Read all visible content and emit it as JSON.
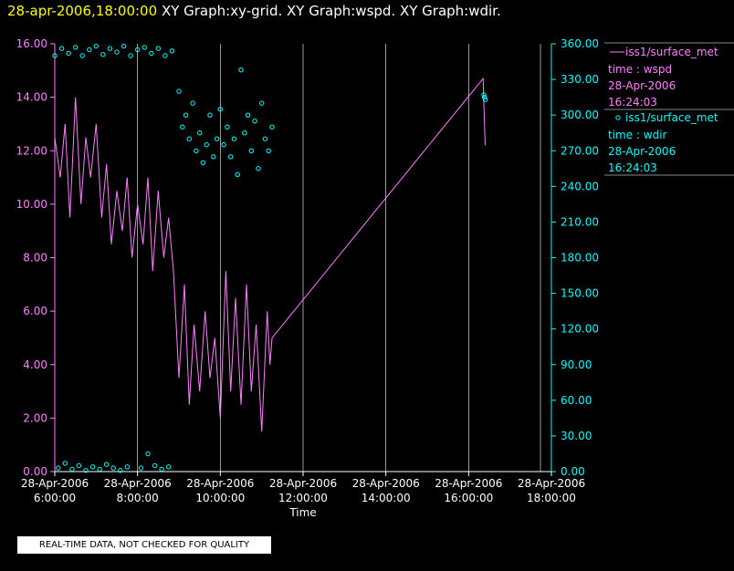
{
  "header": {
    "timestamp": "28-apr-2006,18:00:00",
    "graphs": "XY Graph:xy-grid.  XY Graph:wspd.  XY Graph:wdir."
  },
  "footer_note": "REAL-TIME DATA, NOT CHECKED FOR QUALITY",
  "colors": {
    "wspd": "#ff80ff",
    "wdir": "#00ffff",
    "grid": "#ffffff",
    "timestamp": "#ffff00",
    "axis_text": "#ffffff"
  },
  "chart_data": {
    "type": "line",
    "xlabel": "Time",
    "x_ticks": [
      {
        "date": "28-Apr-2006",
        "time": "6:00:00"
      },
      {
        "date": "28-Apr-2006",
        "time": "8:00:00"
      },
      {
        "date": "28-Apr-2006",
        "time": "10:00:00"
      },
      {
        "date": "28-Apr-2006",
        "time": "12:00:00"
      },
      {
        "date": "28-Apr-2006",
        "time": "14:00:00"
      },
      {
        "date": "28-Apr-2006",
        "time": "16:00:00"
      },
      {
        "date": "28-Apr-2006",
        "time": "18:00:00"
      }
    ],
    "xlim": [
      "28-Apr-2006 06:00:00",
      "28-Apr-2006 18:00:00"
    ],
    "left_axis": {
      "ylim": [
        0,
        16
      ],
      "ticks": [
        "0.00",
        "2.00",
        "4.00",
        "6.00",
        "8.00",
        "10.00",
        "12.00",
        "14.00",
        "16.00"
      ]
    },
    "right_axis": {
      "ylim": [
        0,
        360
      ],
      "ticks": [
        "0.00",
        "30.00",
        "60.00",
        "90.00",
        "120.00",
        "150.00",
        "180.00",
        "210.00",
        "240.00",
        "270.00",
        "300.00",
        "330.00",
        "360.00"
      ]
    },
    "grid": "vertical",
    "legend_position": "right",
    "series": [
      {
        "name": "iss1/surface_met",
        "legend_lines": [
          "iss1/surface_met",
          "time : wspd",
          "28-Apr-2006",
          "16:24:03"
        ],
        "axis": "left",
        "style": "line",
        "points": [
          [
            "06:00",
            12.5
          ],
          [
            "06:08",
            11.0
          ],
          [
            "06:15",
            13.0
          ],
          [
            "06:22",
            9.5
          ],
          [
            "06:30",
            14.0
          ],
          [
            "06:38",
            10.0
          ],
          [
            "06:45",
            12.5
          ],
          [
            "06:52",
            11.0
          ],
          [
            "07:00",
            13.0
          ],
          [
            "07:08",
            9.5
          ],
          [
            "07:15",
            11.5
          ],
          [
            "07:22",
            8.5
          ],
          [
            "07:30",
            10.5
          ],
          [
            "07:38",
            9.0
          ],
          [
            "07:45",
            11.0
          ],
          [
            "07:52",
            8.0
          ],
          [
            "08:00",
            10.0
          ],
          [
            "08:08",
            8.5
          ],
          [
            "08:15",
            11.0
          ],
          [
            "08:22",
            7.5
          ],
          [
            "08:30",
            10.5
          ],
          [
            "08:38",
            8.0
          ],
          [
            "08:45",
            9.5
          ],
          [
            "08:52",
            7.5
          ],
          [
            "09:00",
            3.5
          ],
          [
            "09:08",
            7.0
          ],
          [
            "09:15",
            2.5
          ],
          [
            "09:22",
            5.5
          ],
          [
            "09:30",
            3.0
          ],
          [
            "09:38",
            6.0
          ],
          [
            "09:45",
            3.5
          ],
          [
            "09:52",
            5.0
          ],
          [
            "10:00",
            2.0
          ],
          [
            "10:08",
            7.5
          ],
          [
            "10:15",
            3.0
          ],
          [
            "10:22",
            6.5
          ],
          [
            "10:30",
            2.5
          ],
          [
            "10:38",
            7.0
          ],
          [
            "10:45",
            3.0
          ],
          [
            "10:52",
            5.5
          ],
          [
            "11:00",
            1.5
          ],
          [
            "11:08",
            6.0
          ],
          [
            "11:12",
            4.0
          ],
          [
            "11:15",
            5.0
          ],
          [
            "16:21",
            14.7
          ],
          [
            "16:23",
            13.0
          ],
          [
            "16:24",
            12.2
          ]
        ]
      },
      {
        "name": "iss1/surface_met",
        "legend_lines": [
          "iss1/surface_met",
          "time : wdir",
          "28-Apr-2006",
          "16:24:03"
        ],
        "axis": "right",
        "style": "scatter",
        "points": [
          [
            "06:00",
            350
          ],
          [
            "06:10",
            356
          ],
          [
            "06:20",
            352
          ],
          [
            "06:30",
            357
          ],
          [
            "06:40",
            350
          ],
          [
            "06:50",
            355
          ],
          [
            "07:00",
            358
          ],
          [
            "07:10",
            351
          ],
          [
            "07:20",
            356
          ],
          [
            "07:30",
            353
          ],
          [
            "07:40",
            358
          ],
          [
            "07:50",
            350
          ],
          [
            "08:00",
            355
          ],
          [
            "08:10",
            357
          ],
          [
            "08:20",
            352
          ],
          [
            "08:30",
            356
          ],
          [
            "08:40",
            350
          ],
          [
            "08:50",
            354
          ],
          [
            "06:05",
            3
          ],
          [
            "06:15",
            7
          ],
          [
            "06:25",
            2
          ],
          [
            "06:35",
            5
          ],
          [
            "06:45",
            1
          ],
          [
            "06:55",
            4
          ],
          [
            "07:05",
            2
          ],
          [
            "07:15",
            6
          ],
          [
            "07:25",
            3
          ],
          [
            "07:35",
            1
          ],
          [
            "07:45",
            4
          ],
          [
            "08:05",
            3
          ],
          [
            "08:15",
            15
          ],
          [
            "08:25",
            5
          ],
          [
            "08:35",
            2
          ],
          [
            "08:45",
            4
          ],
          [
            "09:00",
            320
          ],
          [
            "09:05",
            290
          ],
          [
            "09:10",
            300
          ],
          [
            "09:15",
            280
          ],
          [
            "09:20",
            310
          ],
          [
            "09:25",
            270
          ],
          [
            "09:30",
            285
          ],
          [
            "09:35",
            260
          ],
          [
            "09:40",
            275
          ],
          [
            "09:45",
            300
          ],
          [
            "09:50",
            265
          ],
          [
            "09:55",
            280
          ],
          [
            "10:00",
            305
          ],
          [
            "10:05",
            275
          ],
          [
            "10:10",
            290
          ],
          [
            "10:15",
            265
          ],
          [
            "10:20",
            280
          ],
          [
            "10:25",
            250
          ],
          [
            "10:30",
            338
          ],
          [
            "10:35",
            285
          ],
          [
            "10:40",
            300
          ],
          [
            "10:45",
            270
          ],
          [
            "10:50",
            295
          ],
          [
            "10:55",
            255
          ],
          [
            "11:00",
            310
          ],
          [
            "11:05",
            280
          ],
          [
            "11:10",
            270
          ],
          [
            "11:15",
            290
          ],
          [
            "16:22",
            317
          ],
          [
            "16:23",
            315
          ],
          [
            "16:24",
            313
          ]
        ]
      }
    ]
  }
}
